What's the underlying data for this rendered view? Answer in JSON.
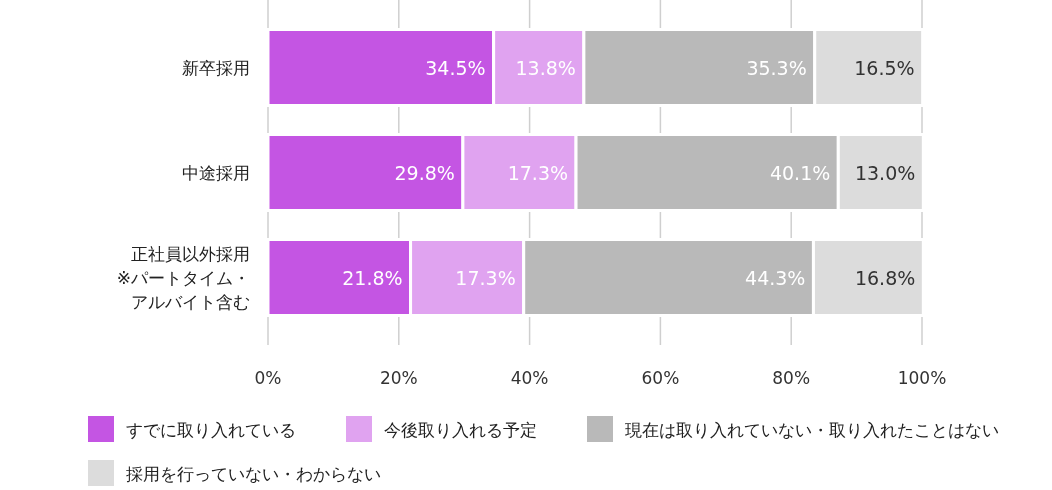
{
  "chart_data": {
    "type": "bar",
    "orientation": "horizontal",
    "stacked": true,
    "categories": [
      "新卒採用",
      "中途採用",
      "正社員以外採用\n※パートタイム・アルバイト含む"
    ],
    "series": [
      {
        "name": "すでに取り入れている",
        "color": "#c455e3",
        "values": [
          34.5,
          29.8,
          21.8
        ],
        "value_labels": [
          "34.5%",
          "29.8%",
          "21.8%"
        ]
      },
      {
        "name": "今後取り入れる予定",
        "color": "#e0a3f0",
        "values": [
          13.8,
          17.3,
          17.3
        ],
        "value_labels": [
          "13.8%",
          "17.3%",
          "17.3%"
        ]
      },
      {
        "name": "現在は取り入れていない・取り入れたことはない",
        "color": "#b9b9b9",
        "values": [
          35.3,
          40.1,
          44.3
        ],
        "value_labels": [
          "35.3%",
          "40.1%",
          "44.3%"
        ]
      },
      {
        "name": "採用を行っていない・わからない",
        "color": "#dcdcdc",
        "values": [
          16.5,
          13.0,
          16.8
        ],
        "value_labels": [
          "16.5%",
          "13.0%",
          "16.8%"
        ]
      }
    ],
    "xlim": [
      0,
      100
    ],
    "xticks": [
      {
        "value": 0,
        "label": "0%"
      },
      {
        "value": 20,
        "label": "20%"
      },
      {
        "value": 40,
        "label": "40%"
      },
      {
        "value": 60,
        "label": "60%"
      },
      {
        "value": 80,
        "label": "80%"
      },
      {
        "value": 100,
        "label": "100%"
      }
    ],
    "grid": "x",
    "legend": "bottom"
  }
}
